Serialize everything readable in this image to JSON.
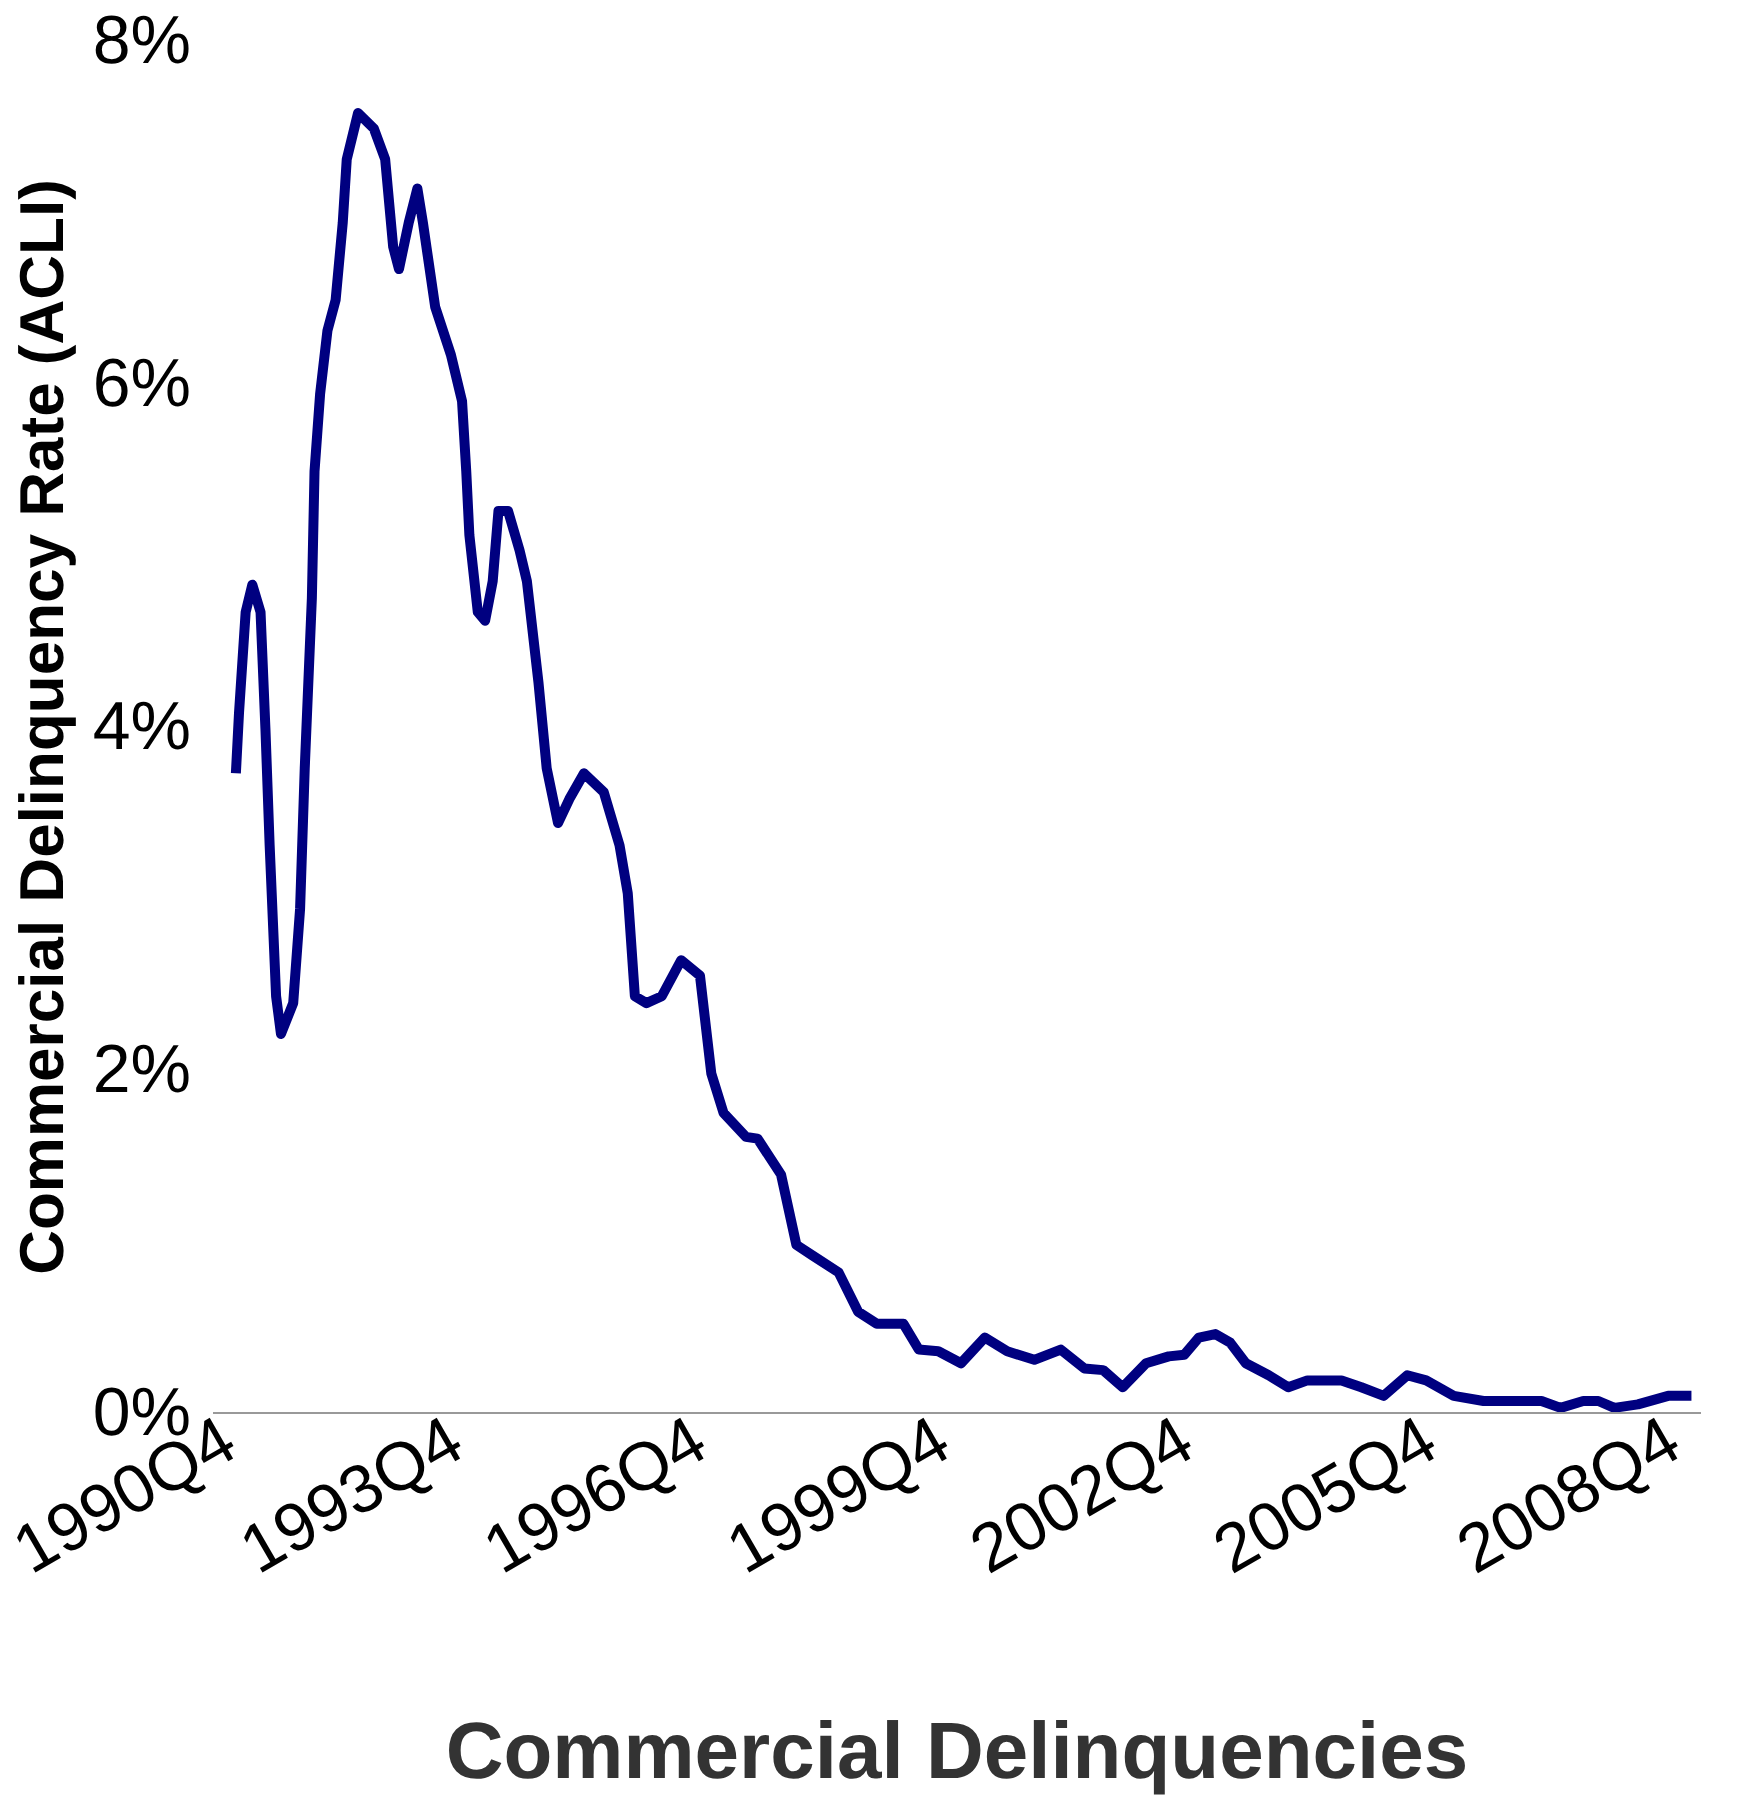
{
  "chart_data": {
    "type": "line",
    "xlabel": "Commercial Delinquencies",
    "ylabel": "Commercial Delinquency Rate (ACLI)",
    "x": [
      "1991-01-12",
      "1991-01-26",
      "1991-02-25",
      "1991-03-27",
      "1991-05-03",
      "1991-05-25",
      "1991-06-13",
      "1991-07-12",
      "1991-08-03",
      "1991-09-27",
      "1991-10-28",
      "1991-11-18",
      "1991-12-20",
      "1992-01-01",
      "1992-01-26",
      "1992-02-28",
      "1992-04-05",
      "1992-05-07",
      "1992-05-25",
      "1992-07-15",
      "1992-09-24",
      "1992-11-14",
      "1992-12-20",
      "1993-01-15",
      "1993-02-28",
      "1993-04-08",
      "1993-05-03",
      "1993-06-27",
      "1993-09-06",
      "1993-10-26",
      "1993-11-14",
      "1993-11-28",
      "1994-01-05",
      "1994-02-07",
      "1994-03-13",
      "1994-04-08",
      "1994-05-21",
      "1994-07-12",
      "1994-08-14",
      "1994-10-05",
      "1994-11-11",
      "1995-01-01",
      "1995-02-21",
      "1995-04-28",
      "1995-07-26",
      "1995-10-05",
      "1995-11-11",
      "1995-12-13",
      "1996-02-03",
      "1996-04-12",
      "1996-07-08",
      "1996-10-01",
      "1996-11-21",
      "1997-01-15",
      "1997-04-26",
      "1997-06-17",
      "1997-10-01",
      "1997-12-09",
      "1998-02-18",
      "1998-06-17",
      "1998-09-13",
      "1998-12-06",
      "1999-04-05",
      "1999-06-13",
      "1999-09-09",
      "1999-12-20",
      "2000-04-05",
      "2000-07-15",
      "2000-11-14",
      "2001-03-13",
      "2001-06-27",
      "2001-09-20",
      "2001-12-17",
      "2002-04-01",
      "2002-07-12",
      "2002-09-20",
      "2002-11-25",
      "2003-02-07",
      "2003-04-15",
      "2003-06-24",
      "2003-10-05",
      "2004-01-01",
      "2004-03-27",
      "2004-08-28",
      "2004-11-25",
      "2005-03-06",
      "2005-06-20",
      "2005-09-13",
      "2006-01-15",
      "2006-05-29",
      "2007-02-14",
      "2007-05-11",
      "2007-08-21",
      "2007-10-28",
      "2008-01-08",
      "2008-04-23",
      "2008-09-06",
      "2008-12-20"
    ],
    "series": [
      {
        "color": "#000080",
        "values": [
          3.73,
          4.08,
          4.67,
          4.83,
          4.67,
          3.99,
          3.31,
          2.43,
          2.21,
          2.39,
          2.94,
          3.76,
          4.75,
          5.49,
          5.94,
          6.31,
          6.49,
          6.94,
          7.31,
          7.58,
          7.49,
          7.31,
          6.8,
          6.67,
          6.94,
          7.14,
          6.94,
          6.45,
          6.17,
          5.9,
          5.49,
          5.12,
          4.67,
          4.62,
          4.85,
          5.26,
          5.26,
          5.03,
          4.85,
          4.26,
          3.76,
          3.44,
          3.58,
          3.73,
          3.62,
          3.31,
          3.03,
          2.43,
          2.39,
          2.43,
          2.64,
          2.55,
          1.98,
          1.75,
          1.61,
          1.6,
          1.39,
          0.98,
          0.92,
          0.82,
          0.59,
          0.52,
          0.52,
          0.37,
          0.36,
          0.29,
          0.44,
          0.36,
          0.31,
          0.37,
          0.26,
          0.25,
          0.15,
          0.29,
          0.33,
          0.34,
          0.44,
          0.46,
          0.41,
          0.29,
          0.22,
          0.15,
          0.19,
          0.19,
          0.15,
          0.1,
          0.22,
          0.19,
          0.1,
          0.07,
          0.07,
          0.03,
          0.07,
          0.07,
          0.03,
          0.05,
          0.1,
          0.1
        ]
      }
    ],
    "xlim": [
      "1990-10-01",
      "2009-02-01"
    ],
    "xticks": [
      {
        "value": "1990-10-01",
        "label": "1990Q4"
      },
      {
        "value": "1993-10-01",
        "label": "1993Q4"
      },
      {
        "value": "1996-10-01",
        "label": "1996Q4"
      },
      {
        "value": "1999-10-01",
        "label": "1999Q4"
      },
      {
        "value": "2002-10-01",
        "label": "2002Q4"
      },
      {
        "value": "2005-10-01",
        "label": "2005Q4"
      },
      {
        "value": "2008-10-01",
        "label": "2008Q4"
      }
    ],
    "ylim": [
      0,
      8
    ],
    "yticks": [
      {
        "value": 0,
        "label": "0%"
      },
      {
        "value": 2,
        "label": "2%"
      },
      {
        "value": 4,
        "label": "4%"
      },
      {
        "value": 6,
        "label": "6%"
      },
      {
        "value": 8,
        "label": "8%"
      }
    ],
    "grid": false,
    "marker": "none",
    "line_style": "solid"
  }
}
